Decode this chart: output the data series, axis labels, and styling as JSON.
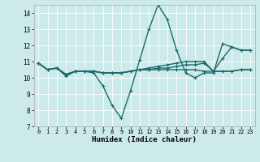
{
  "xlabel": "Humidex (Indice chaleur)",
  "xlim": [
    -0.5,
    23.5
  ],
  "ylim": [
    7,
    14.5
  ],
  "yticks": [
    7,
    8,
    9,
    10,
    11,
    12,
    13,
    14
  ],
  "xticks": [
    0,
    1,
    2,
    3,
    4,
    5,
    6,
    7,
    8,
    9,
    10,
    11,
    12,
    13,
    14,
    15,
    16,
    17,
    18,
    19,
    20,
    21,
    22,
    23
  ],
  "bg_color": "#cdeaea",
  "line_color": "#1a6b6b",
  "line_width": 1.0,
  "marker": "+",
  "markersize": 3.5,
  "markeredgewidth": 0.8,
  "series": [
    [
      10.9,
      10.5,
      10.6,
      10.1,
      10.4,
      10.4,
      10.3,
      9.5,
      8.3,
      7.5,
      9.2,
      11.1,
      13.0,
      14.5,
      13.6,
      11.7,
      10.3,
      10.0,
      10.3,
      10.3,
      12.1,
      11.9,
      11.7,
      11.7
    ],
    [
      10.9,
      10.5,
      10.6,
      10.2,
      10.4,
      10.4,
      10.4,
      10.3,
      10.3,
      10.3,
      10.4,
      10.5,
      10.6,
      10.7,
      10.8,
      10.9,
      11.0,
      11.0,
      11.0,
      10.4,
      10.4,
      10.4,
      10.5,
      10.5
    ],
    [
      10.9,
      10.5,
      10.6,
      10.2,
      10.4,
      10.4,
      10.4,
      10.3,
      10.3,
      10.3,
      10.4,
      10.5,
      10.5,
      10.5,
      10.5,
      10.5,
      10.5,
      10.5,
      10.4,
      10.4,
      10.4,
      10.4,
      10.5,
      10.5
    ],
    [
      10.9,
      10.5,
      10.6,
      10.2,
      10.4,
      10.4,
      10.4,
      10.3,
      10.3,
      10.3,
      10.4,
      10.5,
      10.5,
      10.6,
      10.6,
      10.7,
      10.8,
      10.8,
      10.9,
      10.4,
      11.2,
      11.9,
      11.7,
      11.7
    ]
  ]
}
